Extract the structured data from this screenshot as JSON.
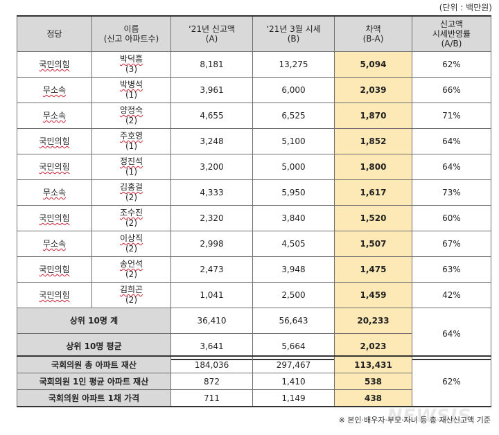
{
  "unit_note": "(단위 : 백만원)",
  "headers": [
    "정당",
    "이름\n(신고 아파트수)",
    "‘21년 신고액\n(A)",
    "‘21년 3월 시세\n(B)",
    "차액\n(B-A)",
    "신고액\n시세반영률\n(A/B)"
  ],
  "rows": [
    {
      "party": "국민의힘",
      "name": "박덕흠",
      "count": "(3)",
      "declared": "8,181",
      "market": "13,275",
      "diff": "5,094",
      "ratio": "62%"
    },
    {
      "party": "무소속",
      "name": "박병석",
      "count": "(1)",
      "declared": "3,961",
      "market": "6,000",
      "diff": "2,039",
      "ratio": "66%"
    },
    {
      "party": "무소속",
      "name": "양정숙",
      "count": "(2)",
      "declared": "4,655",
      "market": "6,525",
      "diff": "1,870",
      "ratio": "71%"
    },
    {
      "party": "국민의힘",
      "name": "주호영",
      "count": "(1)",
      "declared": "3,248",
      "market": "5,100",
      "diff": "1,852",
      "ratio": "64%"
    },
    {
      "party": "국민의힘",
      "name": "정진석",
      "count": "(1)",
      "declared": "3,200",
      "market": "5,000",
      "diff": "1,800",
      "ratio": "64%"
    },
    {
      "party": "무소속",
      "name": "김홍걸",
      "count": "(2)",
      "declared": "4,333",
      "market": "5,950",
      "diff": "1,617",
      "ratio": "73%"
    },
    {
      "party": "국민의힘",
      "name": "조수진",
      "count": "(2)",
      "declared": "2,320",
      "market": "3,840",
      "diff": "1,520",
      "ratio": "60%"
    },
    {
      "party": "무소속",
      "name": "이상직",
      "count": "(2)",
      "declared": "2,998",
      "market": "4,505",
      "diff": "1,507",
      "ratio": "67%"
    },
    {
      "party": "국민의힘",
      "name": "송언석",
      "count": "(2)",
      "declared": "2,473",
      "market": "3,948",
      "diff": "1,475",
      "ratio": "63%"
    },
    {
      "party": "국민의힘",
      "name": "김희곤",
      "count": "(2)",
      "declared": "1,041",
      "market": "2,500",
      "diff": "1,459",
      "ratio": "42%"
    }
  ],
  "summary": {
    "total": {
      "label": "상위 10명 계",
      "declared": "36,410",
      "market": "56,643",
      "diff": "20,233"
    },
    "average": {
      "label": "상위 10명 평균",
      "declared": "3,641",
      "market": "5,664",
      "diff": "2,023"
    },
    "ratio": "64%"
  },
  "assembly": {
    "rows": [
      {
        "label": "국회의원 총 아파트 재산",
        "declared": "184,036",
        "market": "297,467",
        "diff": "113,431"
      },
      {
        "label": "국회의원 1인 평균 아파트 재산",
        "declared": "872",
        "market": "1,410",
        "diff": "538"
      },
      {
        "label": "국회의원 아파트 1채 가격",
        "declared": "711",
        "market": "1,149",
        "diff": "438"
      }
    ],
    "ratio": "62%"
  },
  "footnote": "※ 본인·배우자·부모·자녀 등 총 재산신고액 기준",
  "watermark": "NEWSIS"
}
